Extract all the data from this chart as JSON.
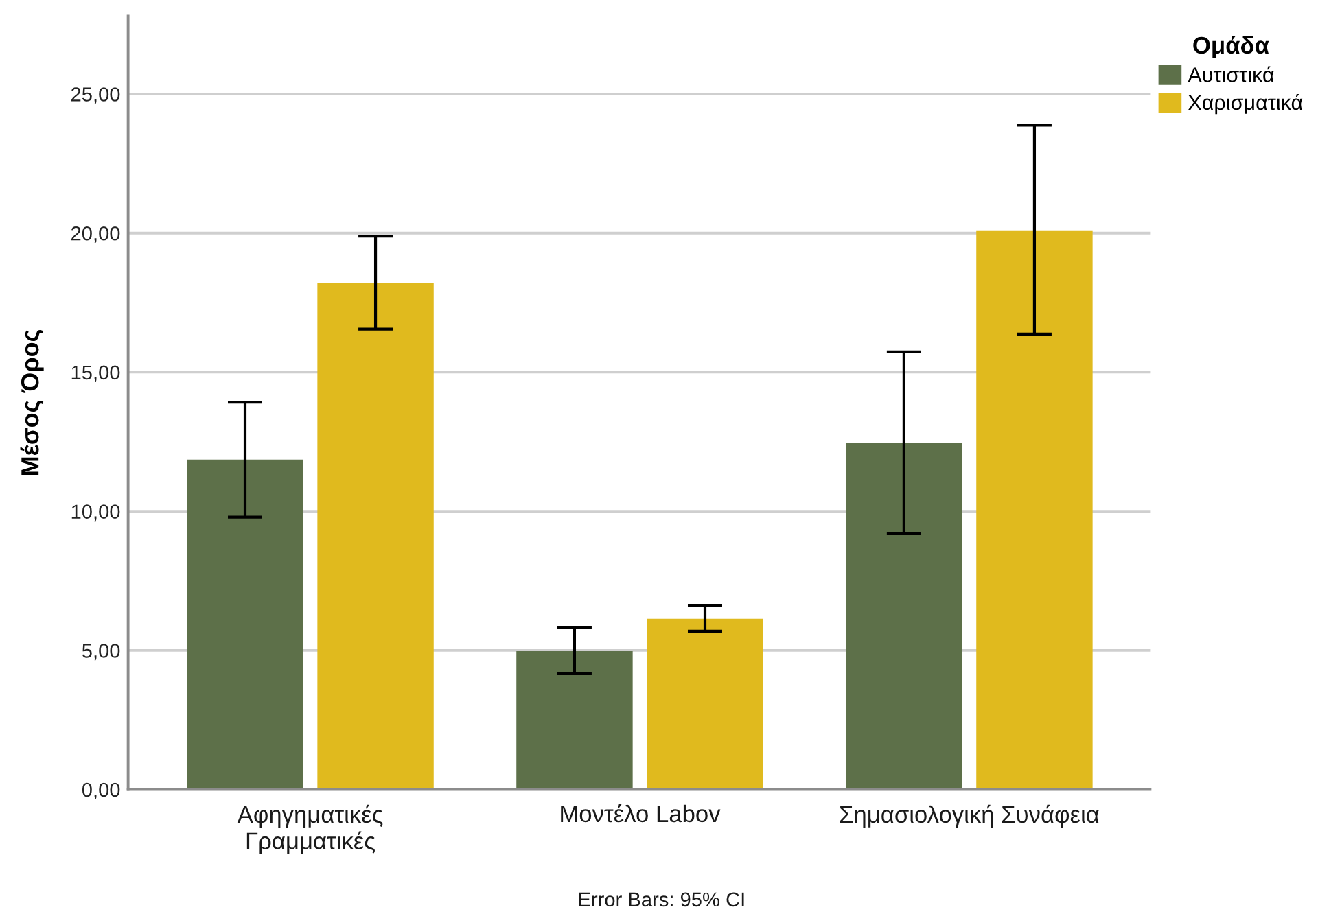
{
  "chart_data": {
    "type": "bar",
    "ylabel": "Μέσος Όρος",
    "legend_title": "Ομάδα",
    "categories": [
      "Αφηγηματικές\nΓραμματικές",
      "Μοντέλο Labov",
      "Σημασιολογική Συνάφεια"
    ],
    "series": [
      {
        "name": "Αυτιστικά",
        "color": "#5d7049",
        "values": [
          11.86,
          4.99,
          12.45
        ],
        "errors": [
          [
            9.79,
            13.92
          ],
          [
            4.17,
            5.83
          ],
          [
            9.19,
            15.73
          ]
        ]
      },
      {
        "name": "Χαρισματικά",
        "color": "#e0ba1e",
        "values": [
          18.2,
          6.14,
          20.1
        ],
        "errors": [
          [
            16.55,
            19.89
          ],
          [
            5.69,
            6.62
          ],
          [
            16.37,
            23.88
          ]
        ]
      }
    ],
    "ylim": [
      0,
      27.8
    ],
    "yticks": [
      {
        "value": 0,
        "label": "0,00"
      },
      {
        "value": 5,
        "label": "5,00"
      },
      {
        "value": 10,
        "label": "10,00"
      },
      {
        "value": 15,
        "label": "15,00"
      },
      {
        "value": 20,
        "label": "20,00"
      },
      {
        "value": 25,
        "label": "25,00"
      }
    ],
    "grid": "y",
    "legend": "top right",
    "annotations": [
      "Error Bars: 95% CI"
    ]
  }
}
